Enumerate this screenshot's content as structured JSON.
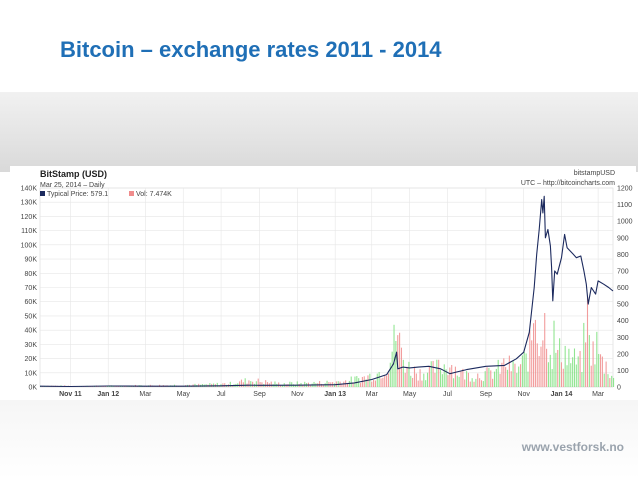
{
  "slide": {
    "title": "Bitcoin – exchange rates 2011 - 2014",
    "footer": "www.vestforsk.no"
  },
  "chart_data": {
    "type": "line",
    "header": {
      "title": "BitStamp (USD)",
      "date": "Mar 25, 2014 – Daily",
      "legend_price": "Typical Price: 579.1",
      "legend_vol": "Vol: 7.474K",
      "source_1": "bitstampUSD",
      "source_2": "UTC – http://bitcoincharts.com"
    },
    "colors": {
      "price": "#1c2a5e",
      "volume_up": "#7fe07f",
      "volume_down": "#f08c8c",
      "grid": "#e6e6e6",
      "axis_text": "#444444"
    },
    "left_axis": {
      "ylim": [
        0,
        140000
      ],
      "ticks": [
        "0K",
        "10K",
        "20K",
        "30K",
        "40K",
        "50K",
        "60K",
        "70K",
        "80K",
        "90K",
        "100K",
        "110K",
        "120K",
        "130K",
        "140K"
      ]
    },
    "right_axis": {
      "ylim": [
        0,
        1200
      ],
      "ticks": [
        "0",
        "100",
        "200",
        "300",
        "400",
        "500",
        "600",
        "700",
        "800",
        "900",
        "1000",
        "1100",
        "1200"
      ]
    },
    "x_axis": {
      "ticks": [
        {
          "label": "Nov 11",
          "x": "2011-11-01",
          "bold": true
        },
        {
          "label": "Jan 12",
          "x": "2012-01-01",
          "bold": true
        },
        {
          "label": "Mar",
          "x": "2012-03-01"
        },
        {
          "label": "May",
          "x": "2012-05-01"
        },
        {
          "label": "Jul",
          "x": "2012-07-01"
        },
        {
          "label": "Sep",
          "x": "2012-09-01"
        },
        {
          "label": "Nov",
          "x": "2012-11-01"
        },
        {
          "label": "Jan 13",
          "x": "2013-01-01",
          "bold": true
        },
        {
          "label": "Mar",
          "x": "2013-03-01"
        },
        {
          "label": "May",
          "x": "2013-05-01"
        },
        {
          "label": "Jul",
          "x": "2013-07-01"
        },
        {
          "label": "Sep",
          "x": "2013-09-01"
        },
        {
          "label": "Nov",
          "x": "2013-11-01"
        },
        {
          "label": "Jan 14",
          "x": "2014-01-01",
          "bold": true
        },
        {
          "label": "Mar",
          "x": "2014-03-01"
        }
      ],
      "range": [
        "2011-09-13",
        "2014-03-25"
      ]
    },
    "price_series": {
      "name": "Typical Price",
      "axis": "right",
      "points": [
        [
          "2011-09-13",
          5
        ],
        [
          "2011-11-01",
          3
        ],
        [
          "2012-01-01",
          6
        ],
        [
          "2012-03-01",
          5
        ],
        [
          "2012-05-01",
          5
        ],
        [
          "2012-07-01",
          7
        ],
        [
          "2012-08-15",
          11
        ],
        [
          "2012-09-01",
          10
        ],
        [
          "2012-11-01",
          11
        ],
        [
          "2013-01-01",
          14
        ],
        [
          "2013-02-01",
          25
        ],
        [
          "2013-03-01",
          45
        ],
        [
          "2013-03-25",
          75
        ],
        [
          "2013-04-05",
          140
        ],
        [
          "2013-04-10",
          210
        ],
        [
          "2013-04-12",
          110
        ],
        [
          "2013-04-20",
          120
        ],
        [
          "2013-05-01",
          115
        ],
        [
          "2013-05-15",
          120
        ],
        [
          "2013-06-01",
          125
        ],
        [
          "2013-06-20",
          110
        ],
        [
          "2013-07-05",
          80
        ],
        [
          "2013-07-15",
          90
        ],
        [
          "2013-08-01",
          105
        ],
        [
          "2013-09-01",
          125
        ],
        [
          "2013-10-01",
          130
        ],
        [
          "2013-10-20",
          170
        ],
        [
          "2013-11-01",
          210
        ],
        [
          "2013-11-10",
          330
        ],
        [
          "2013-11-18",
          600
        ],
        [
          "2013-11-22",
          800
        ],
        [
          "2013-11-26",
          950
        ],
        [
          "2013-11-30",
          1130
        ],
        [
          "2013-12-02",
          1050
        ],
        [
          "2013-12-04",
          1150
        ],
        [
          "2013-12-06",
          900
        ],
        [
          "2013-12-10",
          950
        ],
        [
          "2013-12-14",
          850
        ],
        [
          "2013-12-16",
          720
        ],
        [
          "2013-12-18",
          520
        ],
        [
          "2013-12-21",
          700
        ],
        [
          "2013-12-25",
          680
        ],
        [
          "2014-01-01",
          780
        ],
        [
          "2014-01-06",
          920
        ],
        [
          "2014-01-10",
          840
        ],
        [
          "2014-01-15",
          820
        ],
        [
          "2014-01-20",
          800
        ],
        [
          "2014-01-25",
          780
        ],
        [
          "2014-02-01",
          790
        ],
        [
          "2014-02-06",
          700
        ],
        [
          "2014-02-10",
          620
        ],
        [
          "2014-02-13",
          500
        ],
        [
          "2014-02-18",
          600
        ],
        [
          "2014-02-25",
          560
        ],
        [
          "2014-03-01",
          640
        ],
        [
          "2014-03-10",
          620
        ],
        [
          "2014-03-18",
          600
        ],
        [
          "2014-03-25",
          579
        ]
      ]
    },
    "volume_series": {
      "name": "Vol",
      "axis": "left",
      "points": [
        [
          "2011-10-01",
          1000
        ],
        [
          "2011-12-01",
          800
        ],
        [
          "2012-02-01",
          1200
        ],
        [
          "2012-04-01",
          1500
        ],
        [
          "2012-06-01",
          2000
        ],
        [
          "2012-07-15",
          3000
        ],
        [
          "2012-08-15",
          6000
        ],
        [
          "2012-10-01",
          3000
        ],
        [
          "2012-12-01",
          3500
        ],
        [
          "2013-01-15",
          5000
        ],
        [
          "2013-02-15",
          8000
        ],
        [
          "2013-03-10",
          12000
        ],
        [
          "2013-03-25",
          18000
        ],
        [
          "2013-04-05",
          38000
        ],
        [
          "2013-04-10",
          55000
        ],
        [
          "2013-04-12",
          40000
        ],
        [
          "2013-04-20",
          25000
        ],
        [
          "2013-05-01",
          15000
        ],
        [
          "2013-05-20",
          12000
        ],
        [
          "2013-06-10",
          16000
        ],
        [
          "2013-07-05",
          20000
        ],
        [
          "2013-07-20",
          12000
        ],
        [
          "2013-08-10",
          10000
        ],
        [
          "2013-09-10",
          12000
        ],
        [
          "2013-10-02",
          20000
        ],
        [
          "2013-10-20",
          15000
        ],
        [
          "2013-11-05",
          25000
        ],
        [
          "2013-11-12",
          35000
        ],
        [
          "2013-11-18",
          80000
        ],
        [
          "2013-11-20",
          60000
        ],
        [
          "2013-11-25",
          45000
        ],
        [
          "2013-12-01",
          50000
        ],
        [
          "2013-12-05",
          55000
        ],
        [
          "2013-12-07",
          65000
        ],
        [
          "2013-12-10",
          40000
        ],
        [
          "2013-12-16",
          30000
        ],
        [
          "2013-12-18",
          45000
        ],
        [
          "2013-12-24",
          28000
        ],
        [
          "2014-01-05",
          32000
        ],
        [
          "2014-01-15",
          25000
        ],
        [
          "2014-02-01",
          20000
        ],
        [
          "2014-02-07",
          45000
        ],
        [
          "2014-02-10",
          70000
        ],
        [
          "2014-02-13",
          40000
        ],
        [
          "2014-02-20",
          30000
        ],
        [
          "2014-02-25",
          38000
        ],
        [
          "2014-03-05",
          22000
        ],
        [
          "2014-03-15",
          18000
        ],
        [
          "2014-03-25",
          7474
        ]
      ]
    }
  }
}
